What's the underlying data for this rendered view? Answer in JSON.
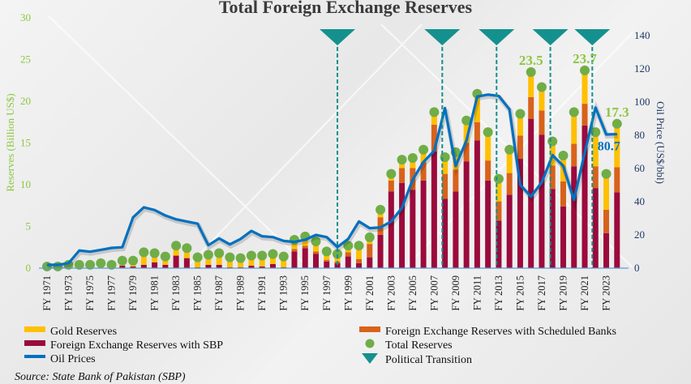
{
  "chart_data": {
    "type": "bar",
    "title": "Total Foreign Exchange Reserves",
    "ylabel": "Reserves (Billion US$)",
    "y2label": "Oil Price (US$/bbl)",
    "ylim": [
      0,
      30
    ],
    "y2lim": [
      0,
      140
    ],
    "yticks": [
      0,
      5,
      10,
      15,
      20,
      25,
      30
    ],
    "y2ticks": [
      0,
      20,
      40,
      60,
      80,
      100,
      120,
      140
    ],
    "years": [
      1971,
      1972,
      1973,
      1974,
      1975,
      1976,
      1977,
      1978,
      1979,
      1980,
      1981,
      1982,
      1983,
      1984,
      1985,
      1986,
      1987,
      1988,
      1989,
      1990,
      1991,
      1992,
      1993,
      1994,
      1995,
      1996,
      1997,
      1998,
      1999,
      2000,
      2001,
      2002,
      2003,
      2004,
      2005,
      2006,
      2007,
      2008,
      2009,
      2010,
      2011,
      2012,
      2013,
      2014,
      2015,
      2016,
      2017,
      2018,
      2019,
      2020,
      2021,
      2022,
      2023,
      2024
    ],
    "xtick_labels": [
      "FY 1971",
      "FY 1973",
      "FY 1975",
      "FY 1977",
      "FY 1979",
      "FY 1981",
      "FY 1983",
      "FY 1985",
      "FY 1987",
      "FY 1989",
      "FY 1991",
      "FY 1993",
      "FY 1995",
      "FY 1997",
      "FY 1999",
      "FY 2001",
      "FY 2003",
      "FY 2005",
      "FY 2007",
      "FY 2009",
      "FY 2011",
      "FY 2013",
      "FY 2015",
      "FY 2017",
      "FY 2019",
      "FY 2021",
      "FY 2023"
    ],
    "series": [
      {
        "name": "Foreign Exchange Reserves with SBP",
        "type": "stacked-bar",
        "color": "#9b0a3c",
        "values": [
          0,
          0,
          0,
          0,
          0,
          0,
          0,
          0.3,
          0.2,
          0.4,
          0.7,
          0.4,
          1.5,
          1.2,
          0.1,
          0.4,
          0.4,
          0.1,
          0.1,
          0.3,
          0.2,
          0.5,
          0.1,
          2.0,
          2.4,
          1.7,
          0.8,
          0.6,
          1.4,
          0.6,
          1.3,
          4.0,
          9.2,
          10.2,
          9.4,
          10.5,
          14.0,
          8.3,
          9.2,
          12.8,
          15.3,
          10.5,
          5.7,
          8.8,
          13.1,
          17.9,
          16.0,
          9.5,
          7.4,
          12.2,
          17.1,
          9.6,
          4.2,
          9.1
        ]
      },
      {
        "name": "Foreign Exchange Reserves with Scheduled Banks",
        "type": "stacked-bar",
        "color": "#d8621b",
        "values": [
          0,
          0,
          0,
          0,
          0,
          0,
          0,
          0,
          0,
          0,
          0,
          0,
          0,
          0,
          0,
          0,
          0,
          0,
          0,
          0,
          0,
          0,
          0,
          0.3,
          0.3,
          0.3,
          0.2,
          0.2,
          0.5,
          0.5,
          1.6,
          2.1,
          1.3,
          1.8,
          2.6,
          2.2,
          3.2,
          3.0,
          2.6,
          2.2,
          2.2,
          2.4,
          2.3,
          2.6,
          2.8,
          2.6,
          2.9,
          2.8,
          3.0,
          2.7,
          2.6,
          2.6,
          2.8,
          3.0
        ]
      },
      {
        "name": "Gold Reserves",
        "type": "stacked-bar",
        "color": "#ffc000",
        "values": [
          0.2,
          0.2,
          0.4,
          0.4,
          0.4,
          0.6,
          0.4,
          0.6,
          0.7,
          1.5,
          1.1,
          1.0,
          1.2,
          1.2,
          1.2,
          1.2,
          1.4,
          1.2,
          1.1,
          1.2,
          1.3,
          1.2,
          1.3,
          1.1,
          1.1,
          1.2,
          1.0,
          0.9,
          0.8,
          1.6,
          0.8,
          0.9,
          0.8,
          1.0,
          1.2,
          1.5,
          1.5,
          2.0,
          2.1,
          2.7,
          3.4,
          3.4,
          2.7,
          2.8,
          2.6,
          3.0,
          2.8,
          2.9,
          3.1,
          3.8,
          4.0,
          4.1,
          4.3,
          5.2
        ]
      },
      {
        "name": "Total Reserves",
        "type": "scatter",
        "color": "#70ad47",
        "values": [
          0.2,
          0.2,
          0.4,
          0.4,
          0.4,
          0.6,
          0.4,
          0.9,
          0.9,
          1.9,
          1.8,
          1.4,
          2.7,
          2.4,
          1.3,
          1.6,
          1.8,
          1.3,
          1.2,
          1.5,
          1.5,
          1.7,
          1.4,
          3.4,
          3.8,
          3.2,
          2.0,
          1.7,
          2.7,
          2.7,
          3.7,
          7.0,
          11.3,
          13.0,
          13.2,
          14.2,
          18.7,
          13.3,
          13.9,
          17.7,
          20.9,
          16.3,
          10.7,
          14.2,
          18.5,
          23.5,
          21.7,
          15.2,
          13.5,
          18.7,
          23.7,
          16.3,
          11.3,
          17.3
        ]
      },
      {
        "name": "Oil Prices",
        "type": "line",
        "axis": "right",
        "color": "#0070c0",
        "values": [
          2,
          2,
          3,
          10.6,
          9.9,
          11,
          12.2,
          12.6,
          30.6,
          36.6,
          35,
          31.7,
          29.4,
          28.1,
          26.8,
          13.8,
          17.9,
          14.3,
          17.6,
          22.4,
          19.2,
          18.7,
          16.4,
          15.8,
          17.1,
          20.0,
          18.7,
          12.7,
          17.6,
          28.1,
          24.1,
          24.5,
          28.1,
          36.3,
          53.3,
          63.9,
          70.7,
          96.4,
          61.5,
          76.9,
          103.3,
          104.5,
          103.7,
          95.6,
          50.1,
          43.1,
          51.7,
          68,
          61.5,
          41.1,
          69.6,
          96.7,
          80.5,
          80.7
        ]
      }
    ],
    "political_transitions": [
      1998,
      2007.75,
      2012.8,
      2017.8,
      2021.7
    ],
    "political_color": "#14918e",
    "annotations": [
      {
        "year": 2016,
        "text": "23.5",
        "series": "Total Reserves"
      },
      {
        "year": 2021,
        "text": "23.7",
        "series": "Total Reserves"
      },
      {
        "year": 2024,
        "text": "17.3",
        "series": "Total Reserves"
      },
      {
        "year": 2024,
        "text": "80.7",
        "series": "Oil Prices"
      }
    ],
    "legend": {
      "gold": "Gold Reserves",
      "sbp": "Foreign Exchange Reserves with SBP",
      "oil": "Oil Prices",
      "banks": "Foreign Exchange Reserves with Scheduled Banks",
      "total": "Total Reserves",
      "political": "Political Transition"
    },
    "legend_placement": "bottom",
    "source": "Source: State Bank of Pakistan (SBP)"
  }
}
